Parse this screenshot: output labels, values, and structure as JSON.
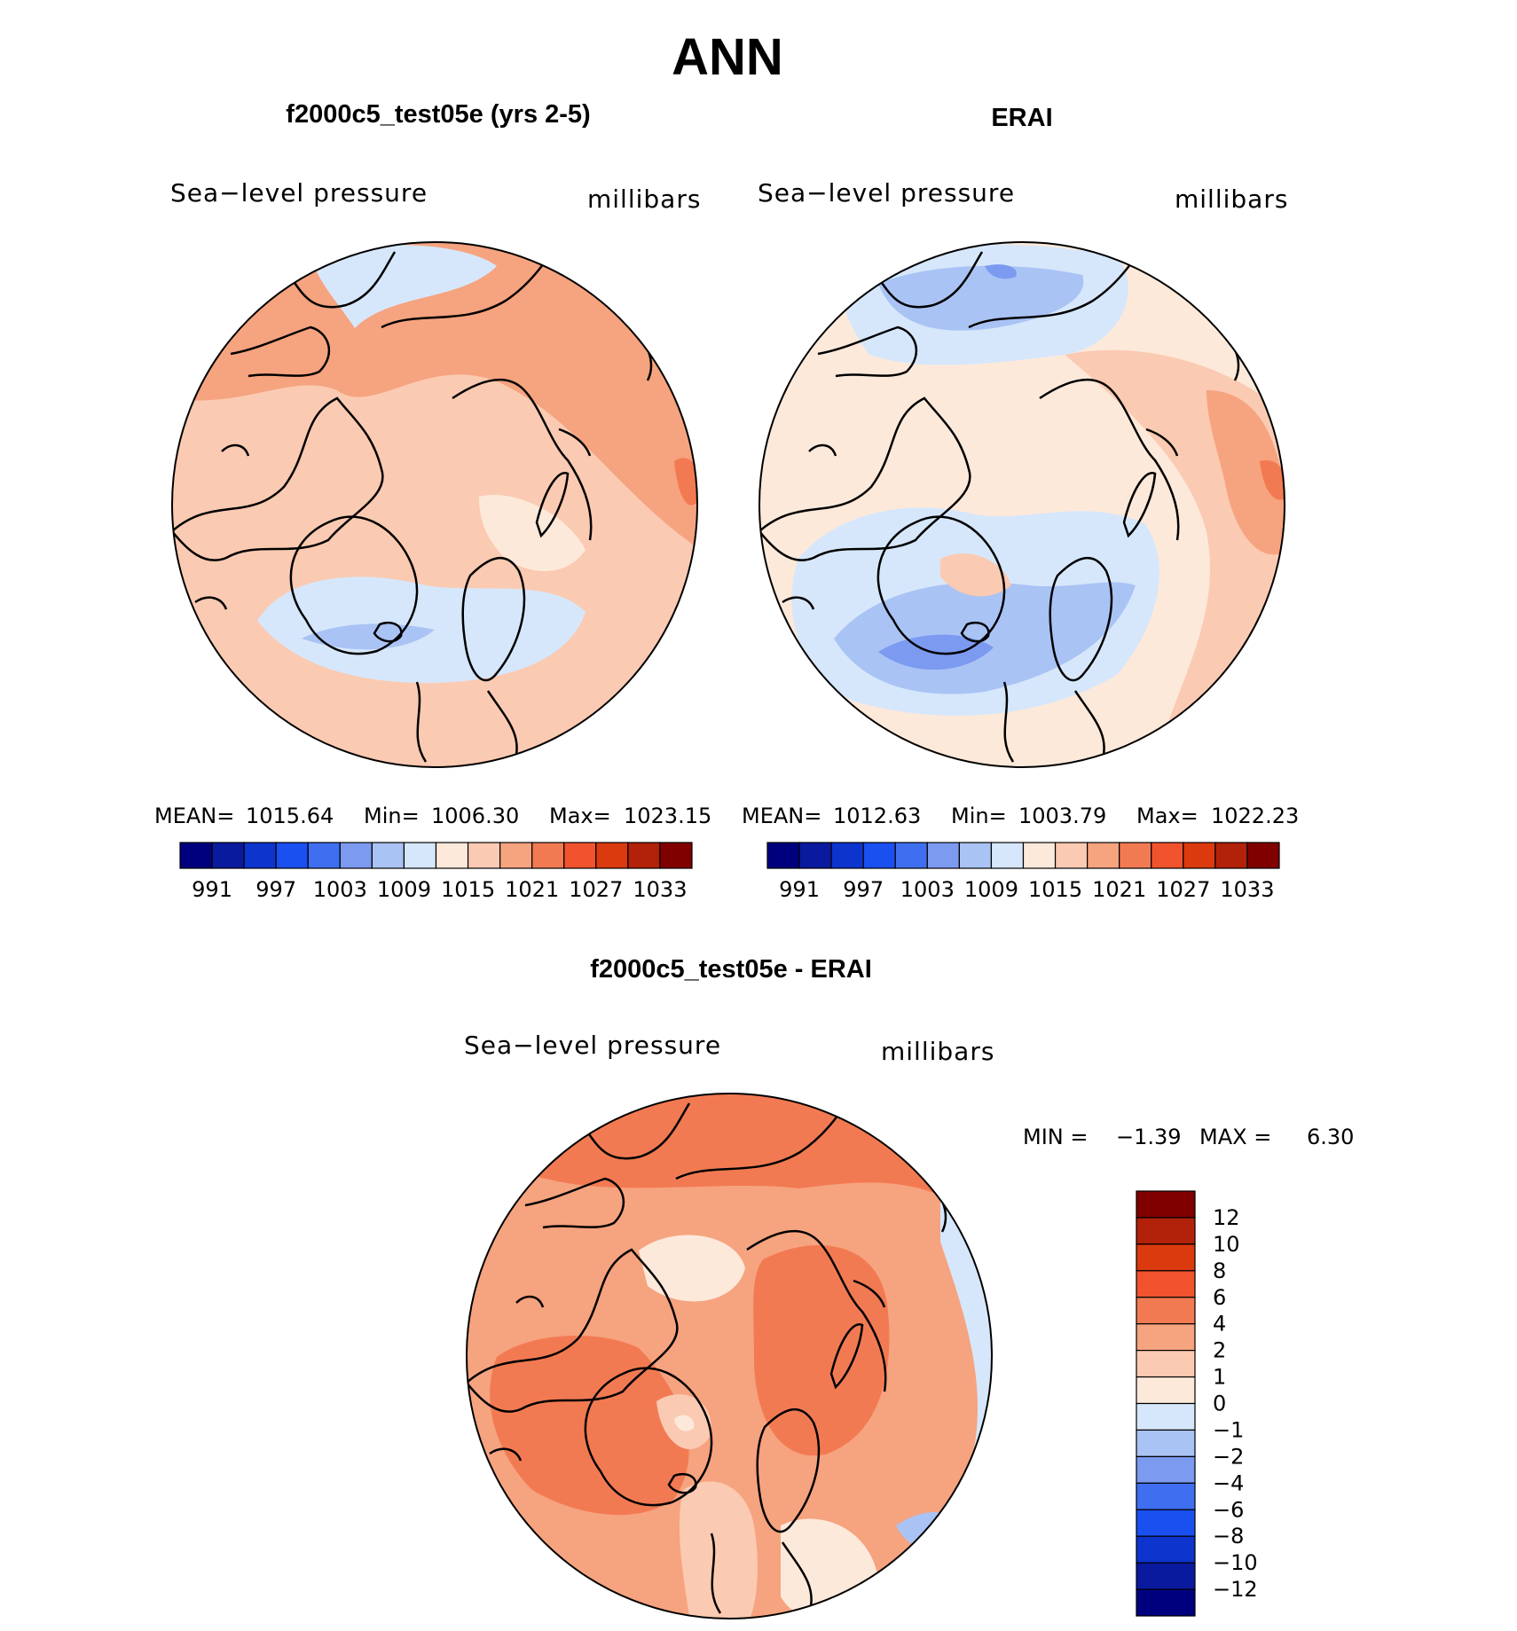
{
  "main_title": "ANN",
  "colors": {
    "land_outline": "#000000",
    "abs_scale": [
      "#00007f",
      "#0a1a9e",
      "#0d34cc",
      "#1a4ff0",
      "#3f6ff0",
      "#7b9af0",
      "#aac3f5",
      "#d6e7fb",
      "#fde9da",
      "#fbcab2",
      "#f6a37f",
      "#f27a52",
      "#f0532d",
      "#db3a0e",
      "#b22109",
      "#800000"
    ],
    "diff_scale": [
      "#00007f",
      "#0a1a9e",
      "#0d34cc",
      "#1a4ff0",
      "#3f6ff0",
      "#7b9af0",
      "#aac3f5",
      "#d6e7fb",
      "#fde9da",
      "#fbcab2",
      "#f6a37f",
      "#f27a52",
      "#f0532d",
      "#db3a0e",
      "#b22109",
      "#800000"
    ]
  },
  "chart_data": [
    {
      "type": "heatmap",
      "projection": "polar-stereographic",
      "title": "f2000c5_test05e (yrs 2-5)",
      "left_label": "Sea−level pressure",
      "right_label": "millibars",
      "stats": {
        "mean_label": "MEAN=",
        "mean": "1015.64",
        "min_label": "Min=",
        "min": "1006.30",
        "max_label": "Max=",
        "max": "1023.15"
      },
      "colorbar_ticks": [
        "991",
        "997",
        "1003",
        "1009",
        "1015",
        "1021",
        "1027",
        "1033"
      ],
      "levels": [
        991,
        994,
        997,
        1000,
        1003,
        1006,
        1009,
        1012,
        1015,
        1018,
        1021,
        1024,
        1027,
        1030,
        1033
      ]
    },
    {
      "type": "heatmap",
      "projection": "polar-stereographic",
      "title": "ERAI",
      "left_label": "Sea−level pressure",
      "right_label": "millibars",
      "stats": {
        "mean_label": "MEAN=",
        "mean": "1012.63",
        "min_label": "Min=",
        "min": "1003.79",
        "max_label": "Max=",
        "max": "1022.23"
      },
      "colorbar_ticks": [
        "991",
        "997",
        "1003",
        "1009",
        "1015",
        "1021",
        "1027",
        "1033"
      ],
      "levels": [
        991,
        994,
        997,
        1000,
        1003,
        1006,
        1009,
        1012,
        1015,
        1018,
        1021,
        1024,
        1027,
        1030,
        1033
      ]
    },
    {
      "type": "heatmap",
      "projection": "polar-stereographic",
      "title": "f2000c5_test05e - ERAI",
      "left_label": "Sea−level pressure",
      "right_label": "millibars",
      "stats": {
        "min_label": "MIN =",
        "min": "−1.39",
        "max_label": "MAX =",
        "max": "6.30"
      },
      "colorbar_ticks": [
        "12",
        "10",
        "8",
        "6",
        "4",
        "2",
        "1",
        "0",
        "−1",
        "−2",
        "−4",
        "−6",
        "−8",
        "−10",
        "−12"
      ],
      "levels": [
        -12,
        -10,
        -8,
        -6,
        -4,
        -2,
        -1,
        0,
        1,
        2,
        4,
        6,
        8,
        10,
        12
      ]
    }
  ]
}
